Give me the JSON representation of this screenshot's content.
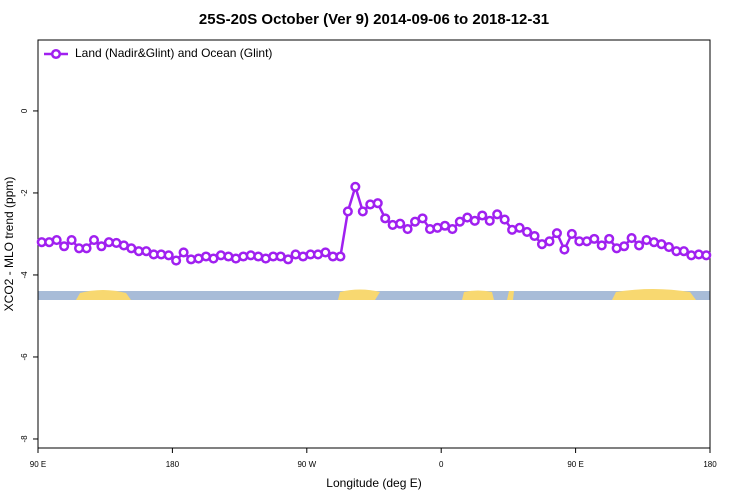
{
  "chart_data": {
    "type": "line",
    "title": "25S-20S October (Ver 9)   2014-09-06 to 2018-12-31",
    "x_label": "Longitude (deg E)",
    "y_label": "XCO2 - MLO trend (ppm)",
    "x": [
      92.5,
      97.5,
      102.5,
      107.5,
      112.5,
      117.5,
      122.5,
      127.5,
      132.5,
      137.5,
      142.5,
      147.5,
      152.5,
      157.5,
      162.5,
      167.5,
      172.5,
      177.5,
      182.5,
      187.5,
      192.5,
      197.5,
      202.5,
      207.5,
      212.5,
      217.5,
      222.5,
      227.5,
      232.5,
      237.5,
      242.5,
      247.5,
      252.5,
      257.5,
      262.5,
      267.5,
      272.5,
      277.5,
      282.5,
      287.5,
      292.5,
      297.5,
      302.5,
      307.5,
      312.5,
      317.5,
      322.5,
      327.5,
      332.5,
      337.5,
      342.5,
      347.5,
      352.5,
      357.5,
      362.5,
      367.5,
      372.5,
      377.5,
      382.5,
      387.5,
      392.5,
      397.5,
      402.5,
      407.5,
      412.5,
      417.5,
      422.5,
      427.5,
      432.5,
      437.5,
      442.5,
      447.5,
      452.5,
      457.5,
      462.5,
      467.5,
      472.5,
      477.5,
      482.5,
      487.5,
      492.5,
      497.5,
      502.5,
      507.5,
      512.5,
      517.5,
      522.5,
      527.5,
      532.5,
      537.5
    ],
    "series": [
      {
        "name": "Land (Nadir&Glint) and Ocean (Glint)",
        "color": "#a020f0",
        "values": [
          -3.2,
          -3.2,
          -3.15,
          -3.3,
          -3.15,
          -3.35,
          -3.35,
          -3.15,
          -3.3,
          -3.2,
          -3.22,
          -3.28,
          -3.35,
          -3.42,
          -3.42,
          -3.5,
          -3.5,
          -3.52,
          -3.65,
          -3.45,
          -3.62,
          -3.6,
          -3.55,
          -3.6,
          -3.52,
          -3.55,
          -3.6,
          -3.55,
          -3.52,
          -3.55,
          -3.6,
          -3.55,
          -3.55,
          -3.62,
          -3.5,
          -3.55,
          -3.5,
          -3.5,
          -3.45,
          -3.55,
          -3.55,
          -2.45,
          -1.85,
          -2.45,
          -2.28,
          -2.25,
          -2.62,
          -2.78,
          -2.75,
          -2.88,
          -2.7,
          -2.62,
          -2.88,
          -2.85,
          -2.8,
          -2.88,
          -2.7,
          -2.6,
          -2.68,
          -2.55,
          -2.68,
          -2.52,
          -2.65,
          -2.9,
          -2.85,
          -2.95,
          -3.05,
          -3.25,
          -3.18,
          -2.98,
          -3.38,
          -3.0,
          -3.18,
          -3.18,
          -3.12,
          -3.28,
          -3.12,
          -3.35,
          -3.3,
          -3.1,
          -3.28,
          -3.15,
          -3.2,
          -3.25,
          -3.32,
          -3.42,
          -3.42,
          -3.52,
          -3.5,
          -3.52
        ]
      }
    ],
    "xlim": [
      90,
      540
    ],
    "xticks": [
      {
        "value": 90,
        "label": "90 E"
      },
      180,
      {
        "value": 270,
        "label": "90 W"
      },
      {
        "value": 360,
        "label": "0"
      },
      {
        "value": 450,
        "label": "90 E"
      },
      {
        "value": 540,
        "label": "180"
      }
    ],
    "ylim": [
      -8.22,
      1.73
    ],
    "yticks": [
      0,
      -2,
      -4,
      -6,
      -8
    ],
    "legend": "top-left"
  }
}
